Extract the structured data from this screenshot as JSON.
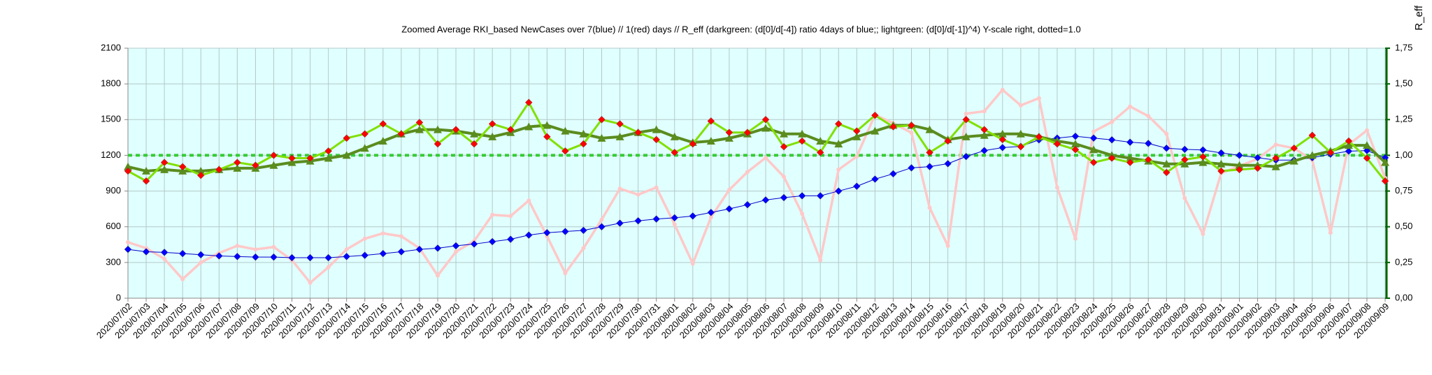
{
  "chart_data": {
    "type": "line",
    "title": "Zoomed Average RKI_based NewCases over 7(blue) // 1(red) days //  R_eff (darkgreen: (d[0]/d[-4]) ratio 4days of blue;; lightgreen: (d[0]/d[-1])^4) Y-scale right, dotted=1.0",
    "y2_label": "R_eff",
    "categories": [
      "2020/07/02",
      "2020/07/03",
      "2020/07/04",
      "2020/07/05",
      "2020/07/06",
      "2020/07/07",
      "2020/07/08",
      "2020/07/09",
      "2020/07/10",
      "2020/07/11",
      "2020/07/12",
      "2020/07/13",
      "2020/07/14",
      "2020/07/15",
      "2020/07/16",
      "2020/07/17",
      "2020/07/18",
      "2020/07/19",
      "2020/07/20",
      "2020/07/21",
      "2020/07/22",
      "2020/07/23",
      "2020/07/24",
      "2020/07/25",
      "2020/07/26",
      "2020/07/27",
      "2020/07/28",
      "2020/07/29",
      "2020/07/30",
      "2020/07/31",
      "2020/08/01",
      "2020/08/02",
      "2020/08/03",
      "2020/08/04",
      "2020/08/05",
      "2020/08/06",
      "2020/08/07",
      "2020/08/08",
      "2020/08/09",
      "2020/08/10",
      "2020/08/11",
      "2020/08/12",
      "2020/08/13",
      "2020/08/14",
      "2020/08/15",
      "2020/08/16",
      "2020/08/17",
      "2020/08/18",
      "2020/08/19",
      "2020/08/20",
      "2020/08/21",
      "2020/08/22",
      "2020/08/23",
      "2020/08/24",
      "2020/08/25",
      "2020/08/26",
      "2020/08/27",
      "2020/08/28",
      "2020/08/29",
      "2020/08/30",
      "2020/08/31",
      "2020/09/01",
      "2020/09/02",
      "2020/09/03",
      "2020/09/04",
      "2020/09/05",
      "2020/09/06",
      "2020/09/07",
      "2020/09/08",
      "2020/09/09"
    ],
    "ylim": [
      0,
      2100
    ],
    "yticks": [
      0,
      300,
      600,
      900,
      1200,
      1500,
      1800,
      2100
    ],
    "y2lim": [
      0,
      1.75
    ],
    "y2ticks": [
      {
        "value": 0,
        "label": "0,00"
      },
      {
        "value": 0.25,
        "label": "0,25"
      },
      {
        "value": 0.5,
        "label": "0,50"
      },
      {
        "value": 0.75,
        "label": "0,75"
      },
      {
        "value": 1.0,
        "label": "1,00"
      },
      {
        "value": 1.25,
        "label": "1,25"
      },
      {
        "value": 1.5,
        "label": "1,50"
      },
      {
        "value": 1.75,
        "label": "1,75"
      }
    ],
    "y2_refline": 1.0,
    "grid": true,
    "plot_background": "#e0ffff",
    "series": [
      {
        "color": "#ffc8c8",
        "marker": "circle",
        "marker_color": "#ffc8c8",
        "line_width": 3.5,
        "axis": "y",
        "values": [
          470,
          420,
          330,
          160,
          300,
          380,
          440,
          410,
          430,
          320,
          130,
          260,
          410,
          500,
          545,
          520,
          420,
          190,
          390,
          480,
          700,
          690,
          820,
          520,
          210,
          420,
          660,
          920,
          870,
          930,
          620,
          290,
          680,
          910,
          1060,
          1180,
          1020,
          710,
          320,
          1080,
          1190,
          1540,
          1470,
          1390,
          760,
          440,
          1550,
          1570,
          1750,
          1620,
          1680,
          930,
          500,
          1400,
          1480,
          1610,
          1530,
          1380,
          840,
          540,
          1050,
          1110,
          1170,
          1290,
          1260,
          1160,
          550,
          1290,
          1410,
          1010
        ]
      },
      {
        "color": "#0000cc",
        "marker": "diamond",
        "marker_color": "#0000ff",
        "line_width": 1,
        "axis": "y",
        "values": [
          410,
          390,
          385,
          375,
          365,
          355,
          350,
          345,
          345,
          340,
          340,
          340,
          350,
          360,
          375,
          390,
          410,
          420,
          440,
          455,
          475,
          495,
          530,
          550,
          560,
          570,
          600,
          630,
          650,
          665,
          675,
          690,
          720,
          750,
          785,
          825,
          845,
          860,
          860,
          900,
          940,
          1000,
          1045,
          1095,
          1105,
          1130,
          1190,
          1240,
          1265,
          1275,
          1330,
          1345,
          1360,
          1345,
          1330,
          1310,
          1300,
          1260,
          1250,
          1245,
          1220,
          1200,
          1180,
          1160,
          1160,
          1180,
          1210,
          1235,
          1240,
          1180
        ]
      },
      {
        "color": "#5a8c1e",
        "marker": "triangle",
        "marker_color": "#5a8c1e",
        "line_width": 4,
        "axis": "y2",
        "values": [
          0.92,
          0.89,
          0.9,
          0.89,
          0.89,
          0.9,
          0.91,
          0.91,
          0.93,
          0.95,
          0.96,
          0.98,
          1.0,
          1.05,
          1.1,
          1.15,
          1.18,
          1.18,
          1.17,
          1.15,
          1.13,
          1.16,
          1.2,
          1.21,
          1.17,
          1.15,
          1.12,
          1.13,
          1.16,
          1.18,
          1.13,
          1.09,
          1.1,
          1.12,
          1.15,
          1.19,
          1.15,
          1.15,
          1.1,
          1.08,
          1.13,
          1.17,
          1.21,
          1.21,
          1.18,
          1.11,
          1.13,
          1.14,
          1.15,
          1.15,
          1.13,
          1.1,
          1.08,
          1.04,
          1.0,
          0.98,
          0.96,
          0.94,
          0.94,
          0.95,
          0.94,
          0.93,
          0.93,
          0.92,
          0.96,
          1.0,
          1.03,
          1.07,
          1.07,
          0.95
        ]
      },
      {
        "color": "#80e000",
        "marker": "diamond",
        "marker_color": "#ff0000",
        "line_width": 3,
        "axis": "y2",
        "values": [
          0.89,
          0.82,
          0.95,
          0.92,
          0.86,
          0.9,
          0.95,
          0.93,
          1.0,
          0.98,
          0.98,
          1.03,
          1.12,
          1.15,
          1.22,
          1.15,
          1.23,
          1.08,
          1.18,
          1.08,
          1.22,
          1.18,
          1.37,
          1.13,
          1.03,
          1.08,
          1.25,
          1.22,
          1.16,
          1.11,
          1.02,
          1.08,
          1.24,
          1.16,
          1.16,
          1.25,
          1.06,
          1.1,
          1.02,
          1.22,
          1.17,
          1.28,
          1.2,
          1.21,
          1.02,
          1.1,
          1.25,
          1.18,
          1.11,
          1.06,
          1.13,
          1.08,
          1.04,
          0.95,
          0.98,
          0.95,
          0.97,
          0.88,
          0.97,
          0.99,
          0.89,
          0.9,
          0.91,
          0.98,
          1.05,
          1.14,
          1.02,
          1.1,
          0.98,
          0.82
        ]
      }
    ]
  }
}
